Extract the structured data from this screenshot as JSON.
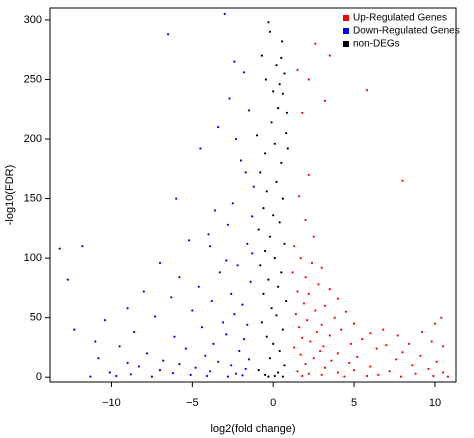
{
  "chart_data": {
    "type": "scatter",
    "title": "",
    "xlabel": "log2(fold change)",
    "ylabel": "-log10(FDR)",
    "xlim": [
      -13.8,
      11.3
    ],
    "ylim": [
      -4,
      310
    ],
    "xticks": [
      -10,
      -5,
      0,
      5,
      10
    ],
    "yticks": [
      0,
      50,
      100,
      150,
      200,
      250,
      300
    ],
    "grid": false,
    "legend_position": "top-right",
    "series": [
      {
        "name": "Up-Regulated Genes",
        "color": "#ff0000",
        "points": [
          [
            1.5,
            258
          ],
          [
            1.8,
            222
          ],
          [
            2.2,
            170
          ],
          [
            1.6,
            152
          ],
          [
            2.0,
            132
          ],
          [
            2.5,
            118
          ],
          [
            1.3,
            110
          ],
          [
            1.7,
            100
          ],
          [
            2.4,
            96
          ],
          [
            3.0,
            92
          ],
          [
            1.2,
            88
          ],
          [
            2.0,
            84
          ],
          [
            2.8,
            78
          ],
          [
            3.5,
            74
          ],
          [
            1.5,
            72
          ],
          [
            2.2,
            70
          ],
          [
            4.0,
            66
          ],
          [
            1.9,
            62
          ],
          [
            3.2,
            60
          ],
          [
            2.6,
            56
          ],
          [
            4.5,
            55
          ],
          [
            1.4,
            53
          ],
          [
            3.8,
            50
          ],
          [
            2.1,
            48
          ],
          [
            5.0,
            45
          ],
          [
            3.0,
            44
          ],
          [
            1.6,
            42
          ],
          [
            4.2,
            40
          ],
          [
            2.7,
            38
          ],
          [
            6.0,
            37
          ],
          [
            3.5,
            35
          ],
          [
            1.8,
            33
          ],
          [
            5.5,
            32
          ],
          [
            2.3,
            30
          ],
          [
            4.8,
            28
          ],
          [
            7.0,
            27
          ],
          [
            3.1,
            26
          ],
          [
            1.3,
            25
          ],
          [
            6.4,
            24
          ],
          [
            2.9,
            22
          ],
          [
            8.0,
            21
          ],
          [
            4.0,
            20
          ],
          [
            1.7,
            19
          ],
          [
            9.1,
            18
          ],
          [
            5.2,
            17
          ],
          [
            2.5,
            16
          ],
          [
            7.6,
            15
          ],
          [
            3.6,
            14
          ],
          [
            10.1,
            13
          ],
          [
            4.7,
            12
          ],
          [
            2.0,
            11
          ],
          [
            8.6,
            10
          ],
          [
            6.0,
            9
          ],
          [
            3.2,
            8
          ],
          [
            9.6,
            7
          ],
          [
            5.0,
            6
          ],
          [
            1.5,
            5
          ],
          [
            7.2,
            5
          ],
          [
            10.5,
            4
          ],
          [
            4.0,
            4
          ],
          [
            2.2,
            3
          ],
          [
            8.8,
            3
          ],
          [
            6.5,
            2
          ],
          [
            3.0,
            2
          ],
          [
            9.9,
            1
          ],
          [
            5.8,
            1
          ],
          [
            1.8,
            1
          ],
          [
            7.9,
            0.5
          ],
          [
            4.4,
            0.5
          ],
          [
            10.8,
            0.5
          ],
          [
            5.8,
            241
          ],
          [
            8.0,
            165
          ],
          [
            3.2,
            232
          ],
          [
            2.6,
            280
          ],
          [
            3.5,
            270
          ],
          [
            2.2,
            250
          ],
          [
            10.4,
            50
          ],
          [
            10.0,
            45
          ],
          [
            9.2,
            38
          ],
          [
            10.5,
            26
          ],
          [
            9.8,
            30
          ],
          [
            7.7,
            35
          ],
          [
            6.8,
            40
          ],
          [
            8.4,
            28
          ]
        ]
      },
      {
        "name": "Down-Regulated Genes",
        "color": "#0000ff",
        "points": [
          [
            -3.0,
            305
          ],
          [
            -6.5,
            288
          ],
          [
            -2.4,
            265
          ],
          [
            -1.8,
            256
          ],
          [
            -2.7,
            234
          ],
          [
            -1.5,
            224
          ],
          [
            -4.5,
            192
          ],
          [
            -2.0,
            182
          ],
          [
            -6.0,
            150
          ],
          [
            -3.6,
            140
          ],
          [
            -1.3,
            135
          ],
          [
            -2.8,
            128
          ],
          [
            -4.0,
            120
          ],
          [
            -5.2,
            115
          ],
          [
            -1.6,
            112
          ],
          [
            -13.2,
            108
          ],
          [
            -11.8,
            110
          ],
          [
            -12.7,
            82
          ],
          [
            -7.0,
            96
          ],
          [
            -2.2,
            94
          ],
          [
            -3.3,
            88
          ],
          [
            -5.8,
            84
          ],
          [
            -1.4,
            80
          ],
          [
            -4.6,
            76
          ],
          [
            -8.0,
            72
          ],
          [
            -2.6,
            70
          ],
          [
            -6.3,
            67
          ],
          [
            -3.8,
            64
          ],
          [
            -1.9,
            61
          ],
          [
            -9.0,
            58
          ],
          [
            -5.0,
            56
          ],
          [
            -2.4,
            53
          ],
          [
            -7.3,
            51
          ],
          [
            -10.4,
            48
          ],
          [
            -3.1,
            46
          ],
          [
            -1.6,
            44
          ],
          [
            -4.4,
            42
          ],
          [
            -12.3,
            40
          ],
          [
            -8.6,
            38
          ],
          [
            -2.9,
            36
          ],
          [
            -6.1,
            34
          ],
          [
            -1.8,
            32
          ],
          [
            -11.0,
            30
          ],
          [
            -3.7,
            28
          ],
          [
            -9.5,
            26
          ],
          [
            -5.4,
            24
          ],
          [
            -2.1,
            22
          ],
          [
            -7.8,
            20
          ],
          [
            -4.2,
            18
          ],
          [
            -10.8,
            16
          ],
          [
            -1.5,
            15
          ],
          [
            -6.8,
            14
          ],
          [
            -3.4,
            13
          ],
          [
            -9.0,
            12
          ],
          [
            -5.8,
            11
          ],
          [
            -2.6,
            10
          ],
          [
            -8.3,
            9
          ],
          [
            -4.8,
            8
          ],
          [
            -1.7,
            7
          ],
          [
            -7.0,
            6
          ],
          [
            -3.9,
            5
          ],
          [
            -10.1,
            4
          ],
          [
            -6.2,
            3.5
          ],
          [
            -2.3,
            3
          ],
          [
            -8.8,
            2.5
          ],
          [
            -5.1,
            2
          ],
          [
            -1.9,
            1.5
          ],
          [
            -9.7,
            1
          ],
          [
            -4.1,
            1
          ],
          [
            -7.5,
            0.5
          ],
          [
            -2.8,
            0.5
          ],
          [
            -11.3,
            0.5
          ],
          [
            -3.4,
            210
          ],
          [
            -2.3,
            200
          ],
          [
            -1.7,
            172
          ],
          [
            -1.2,
            160
          ],
          [
            -2.5,
            146
          ],
          [
            -3.9,
            110
          ],
          [
            -1.3,
            104
          ],
          [
            -2.9,
            98
          ]
        ]
      },
      {
        "name": "non-DEGs",
        "color": "#000000",
        "points": [
          [
            -0.3,
            298
          ],
          [
            0.5,
            268
          ],
          [
            0.2,
            262
          ],
          [
            0.7,
            255
          ],
          [
            0.4,
            246
          ],
          [
            0.6,
            238
          ],
          [
            0.3,
            226
          ],
          [
            -0.1,
            214
          ],
          [
            0.8,
            205
          ],
          [
            0.1,
            196
          ],
          [
            -0.5,
            188
          ],
          [
            0.5,
            180
          ],
          [
            -0.8,
            172
          ],
          [
            0.2,
            164
          ],
          [
            -0.4,
            156
          ],
          [
            0.6,
            150
          ],
          [
            -0.6,
            142
          ],
          [
            0.0,
            136
          ],
          [
            0.4,
            130
          ],
          [
            -0.9,
            124
          ],
          [
            -0.2,
            118
          ],
          [
            0.7,
            112
          ],
          [
            -0.5,
            106
          ],
          [
            0.1,
            100
          ],
          [
            -0.8,
            94
          ],
          [
            0.5,
            88
          ],
          [
            -0.3,
            82
          ],
          [
            0.3,
            76
          ],
          [
            -0.6,
            70
          ],
          [
            0.8,
            64
          ],
          [
            -0.1,
            58
          ],
          [
            0.2,
            52
          ],
          [
            -0.7,
            46
          ],
          [
            0.6,
            40
          ],
          [
            -0.4,
            34
          ],
          [
            0.0,
            28
          ],
          [
            0.4,
            22
          ],
          [
            -0.2,
            16
          ],
          [
            0.7,
            10
          ],
          [
            -0.9,
            6
          ],
          [
            0.3,
            4
          ],
          [
            -0.5,
            2
          ],
          [
            0.1,
            1
          ],
          [
            -0.3,
            0.5
          ],
          [
            0.6,
            0.5
          ],
          [
            -0.7,
            270
          ],
          [
            0.9,
            192
          ],
          [
            -1.0,
            203
          ],
          [
            0.0,
            240
          ],
          [
            -0.2,
            290
          ],
          [
            0.55,
            282
          ],
          [
            -0.45,
            250
          ],
          [
            0.85,
            222
          ]
        ]
      }
    ]
  }
}
